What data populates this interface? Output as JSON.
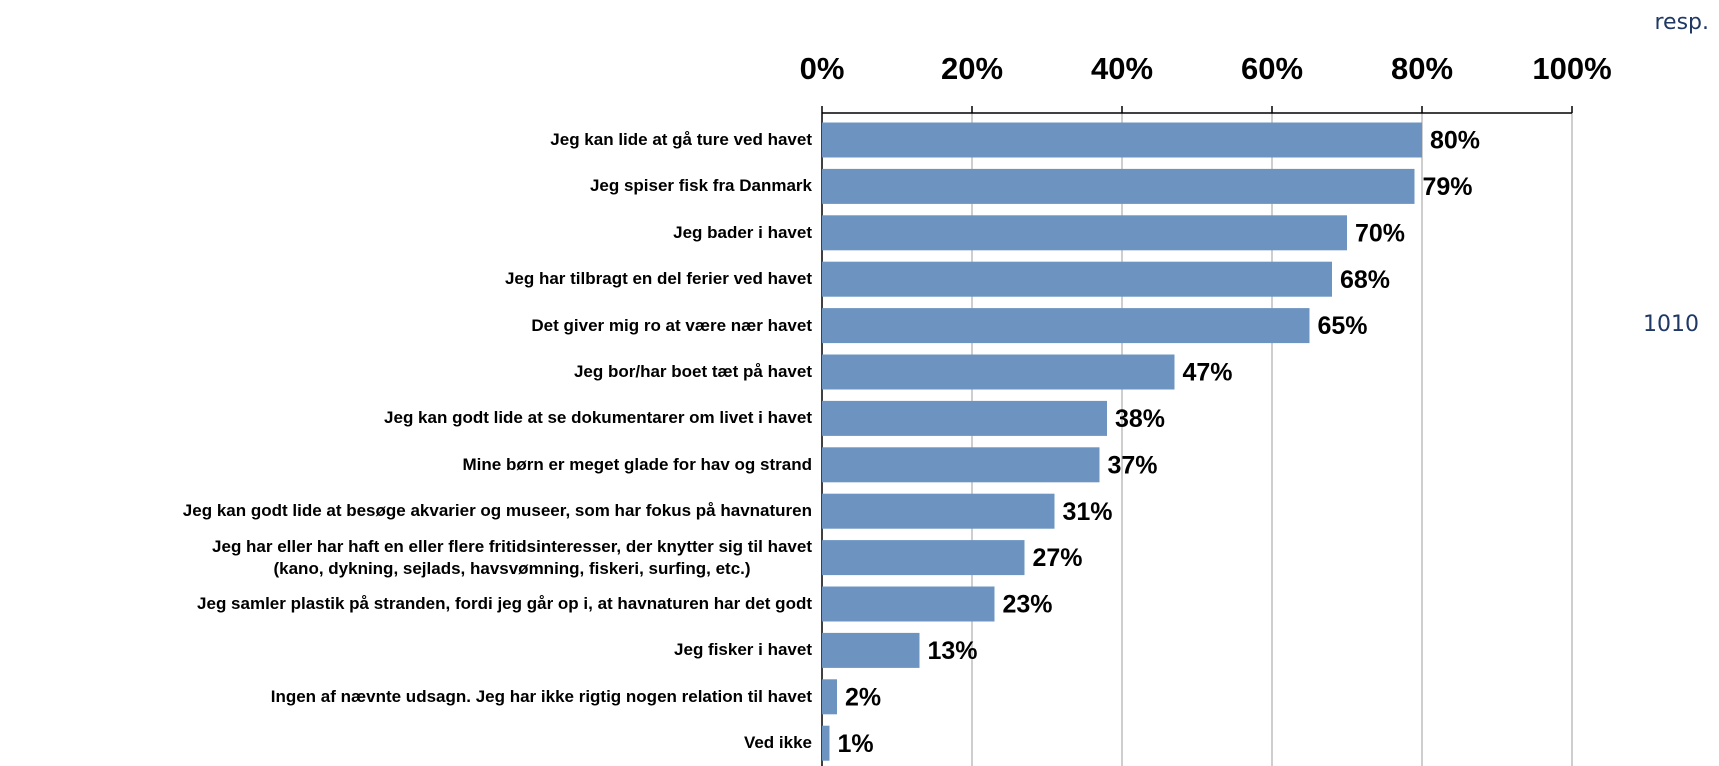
{
  "chart_data": {
    "type": "barh",
    "categories": [
      "Jeg kan lide at gå ture ved havet",
      "Jeg spiser fisk fra Danmark",
      "Jeg bader i havet",
      "Jeg har tilbragt en del ferier ved havet",
      "Det giver mig ro at være nær havet",
      "Jeg bor/har boet tæt på havet",
      "Jeg kan godt lide at se dokumentarer om livet i havet",
      "Mine børn er meget glade for hav og strand",
      "Jeg kan godt lide at besøge akvarier og museer, som har fokus på havnaturen",
      "Jeg har eller har haft en eller flere fritidsinteresser, der knytter sig til havet\n(kano, dykning, sejlads, havsvømning, fiskeri, surfing, etc.)",
      "Jeg samler plastik på stranden, fordi jeg går op i, at havnaturen har det godt",
      "Jeg fisker i havet",
      "Ingen af nævnte udsagn. Jeg har ikke rigtig nogen relation til havet",
      "Ved ikke"
    ],
    "values": [
      80,
      79,
      70,
      68,
      65,
      47,
      38,
      37,
      31,
      27,
      23,
      13,
      2,
      1
    ],
    "value_labels": [
      "80%",
      "79%",
      "70%",
      "68%",
      "65%",
      "47%",
      "38%",
      "37%",
      "31%",
      "27%",
      "23%",
      "13%",
      "2%",
      "1%"
    ],
    "color": "#6d94c0",
    "xlim": [
      0,
      100
    ],
    "xticks": [
      {
        "value": 0,
        "label": "0%"
      },
      {
        "value": 20,
        "label": "20%"
      },
      {
        "value": 40,
        "label": "40%"
      },
      {
        "value": 60,
        "label": "60%"
      },
      {
        "value": 80,
        "label": "80%"
      },
      {
        "value": 100,
        "label": "100%"
      }
    ],
    "grid": true,
    "annotations": [
      "resp.",
      "1010"
    ]
  }
}
